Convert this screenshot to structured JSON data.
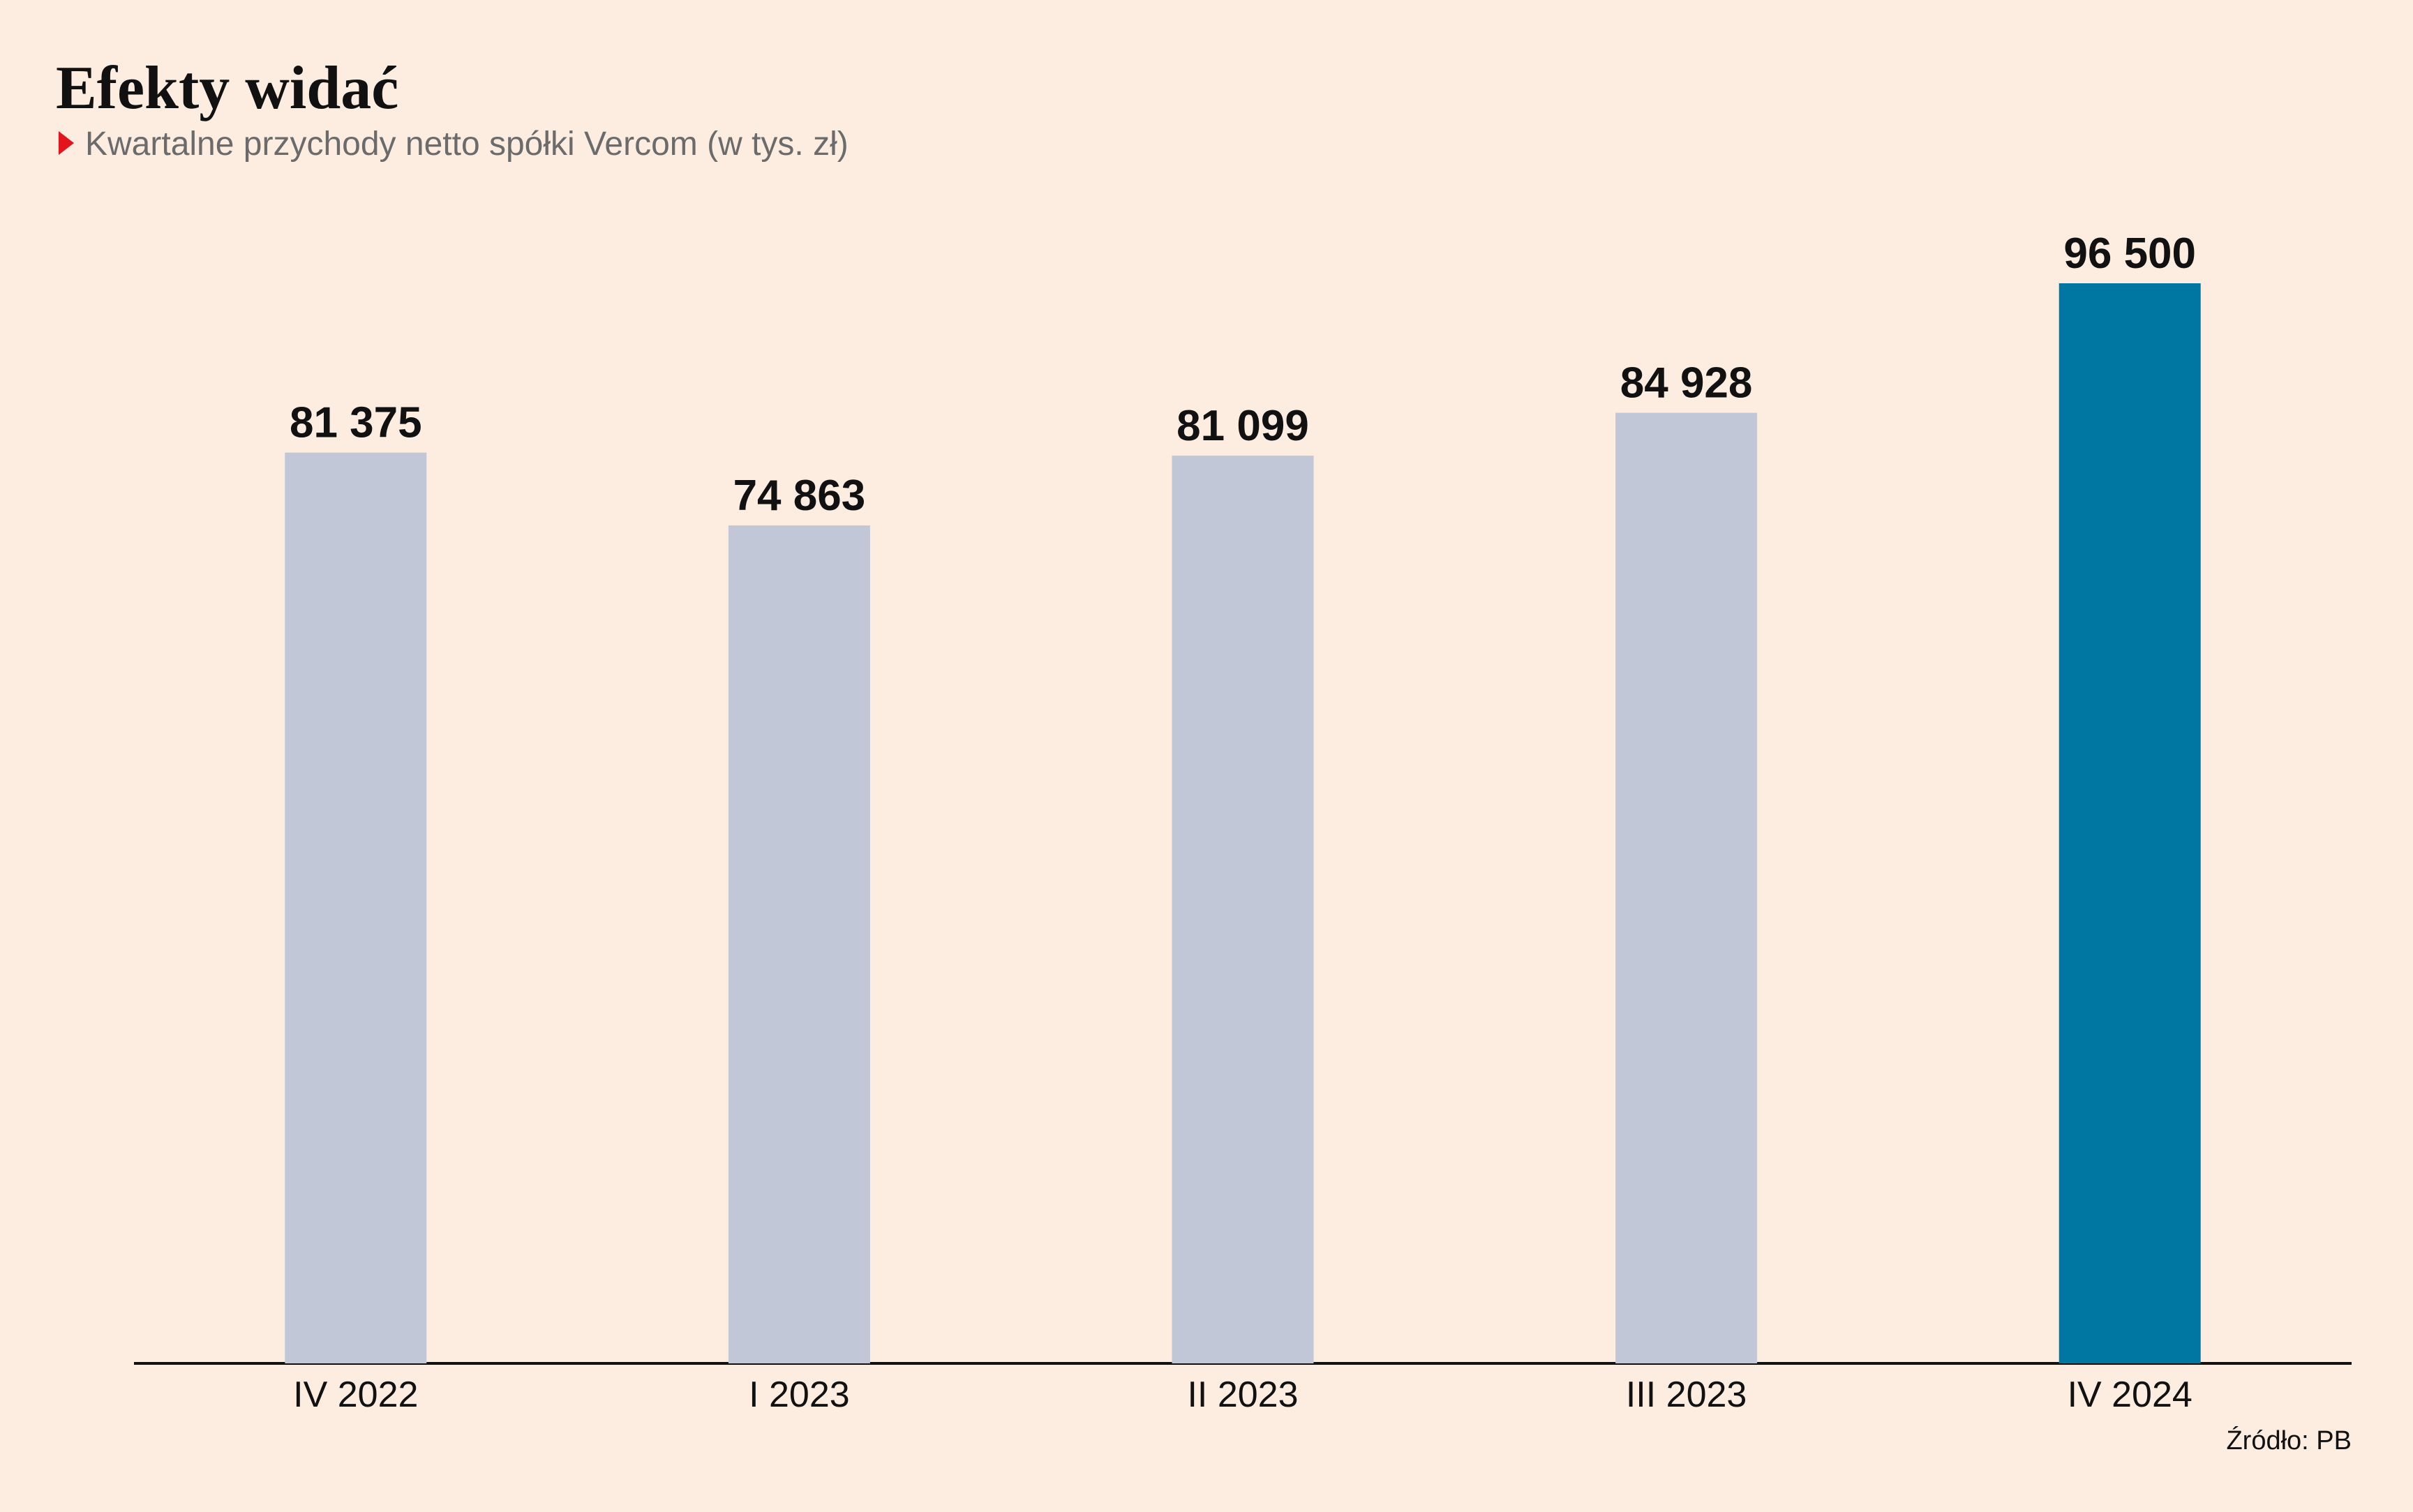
{
  "chart_data": {
    "type": "bar",
    "title": "Efekty widać",
    "subtitle": "Kwartalne przychody netto spółki Vercom (w tys. zł)",
    "categories": [
      "IV 2022",
      "I 2023",
      "II 2023",
      "III 2023",
      "IV 2024"
    ],
    "values": [
      81375,
      74863,
      81099,
      84928,
      96500
    ],
    "value_labels": [
      "81 375",
      "74 863",
      "81 099",
      "84 928",
      "96 500"
    ],
    "colors": [
      "#c1c7d6",
      "#c1c7d6",
      "#c1c7d6",
      "#c1c7d6",
      "#0077a3"
    ],
    "source": "Źródło: PB"
  }
}
